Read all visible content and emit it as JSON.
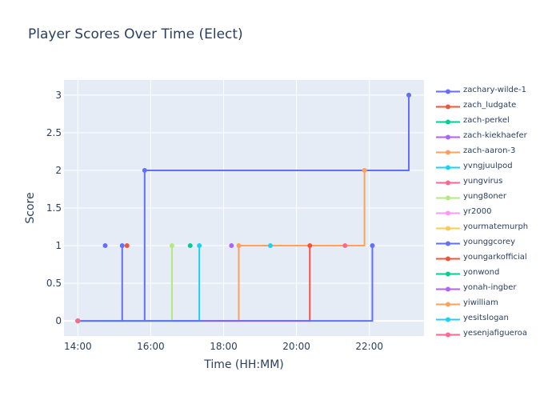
{
  "chart_data": {
    "type": "line",
    "title": "Player Scores Over Time (Elect)",
    "xlabel": "Time (HH:MM)",
    "ylabel": "Score",
    "line_shape": "step-after",
    "x_range_hours": [
      13.62,
      23.5
    ],
    "ylim": [
      -0.2,
      3.2
    ],
    "x_tick_labels": [
      "14:00",
      "16:00",
      "18:00",
      "20:00",
      "22:00"
    ],
    "x_tick_hours": [
      14,
      16,
      18,
      20,
      22
    ],
    "y_ticks": [
      0,
      0.5,
      1,
      1.5,
      2,
      2.5,
      3
    ],
    "y_tick_labels": [
      "0",
      "0.5",
      "1",
      "1.5",
      "2",
      "2.5",
      "3"
    ],
    "grid": true,
    "legend_position": "right",
    "series": [
      {
        "name": "zachary-wilde-1",
        "color": "#636efa",
        "x": [
          "14:00",
          "15:50",
          "23:05"
        ],
        "y": [
          0,
          2,
          3
        ]
      },
      {
        "name": "zach_ludgate",
        "color": "#EF553B",
        "x": [
          "14:00",
          "20:22"
        ],
        "y": [
          0,
          1
        ]
      },
      {
        "name": "zach-perkel",
        "color": "#00cc96",
        "x": [
          "14:00"
        ],
        "y": [
          0
        ]
      },
      {
        "name": "zach-kiekhaefer",
        "color": "#ab63fa",
        "x": [
          "14:00"
        ],
        "y": [
          0
        ]
      },
      {
        "name": "zach-aaron-3",
        "color": "#FFA15A",
        "x": [
          "14:00",
          "18:25",
          "21:52"
        ],
        "y": [
          0,
          1,
          2
        ]
      },
      {
        "name": "yvngjuulpod",
        "color": "#19d3f3",
        "x": [
          "14:00",
          "17:20"
        ],
        "y": [
          0,
          1
        ]
      },
      {
        "name": "yungvirus",
        "color": "#FF6692",
        "x": [
          "14:00"
        ],
        "y": [
          0
        ]
      },
      {
        "name": "yung8oner",
        "color": "#B6E880",
        "x": [
          "14:00",
          "16:35"
        ],
        "y": [
          0,
          1
        ]
      },
      {
        "name": "yr2000",
        "color": "#FF97FF",
        "x": [
          "14:00"
        ],
        "y": [
          0
        ]
      },
      {
        "name": "yourmatemurph",
        "color": "#FECB52",
        "x": [
          "14:00"
        ],
        "y": [
          0
        ]
      },
      {
        "name": "younggcorey",
        "color": "#636efa",
        "x": [
          "14:00",
          "22:05"
        ],
        "y": [
          0,
          1
        ]
      },
      {
        "name": "youngarkofficial",
        "color": "#EF553B",
        "x": [
          "14:00"
        ],
        "y": [
          0
        ]
      },
      {
        "name": "yonwond",
        "color": "#00cc96",
        "x": [
          "14:00"
        ],
        "y": [
          0
        ]
      },
      {
        "name": "yonah-ingber",
        "color": "#ab63fa",
        "x": [
          "14:00"
        ],
        "y": [
          0
        ]
      },
      {
        "name": "yiwilliam",
        "color": "#FFA15A",
        "x": [
          "14:00"
        ],
        "y": [
          0
        ]
      },
      {
        "name": "yesitslogan",
        "color": "#19d3f3",
        "x": [
          "14:00"
        ],
        "y": [
          0
        ]
      },
      {
        "name": "yesenjafigueroa",
        "color": "#FF6692",
        "x": [
          "14:00"
        ],
        "y": [
          0
        ]
      }
    ],
    "isolated_points": [
      {
        "color": "#636efa",
        "x": "14:45",
        "y": 1
      },
      {
        "color": "#636efa",
        "x": "15:13",
        "y": 1
      },
      {
        "color": "#EF553B",
        "x": "15:21",
        "y": 1
      },
      {
        "color": "#00cc96",
        "x": "17:05",
        "y": 1
      },
      {
        "color": "#ab63fa",
        "x": "18:13",
        "y": 1
      },
      {
        "color": "#19d3f3",
        "x": "19:17",
        "y": 1
      },
      {
        "color": "#FF6692",
        "x": "21:20",
        "y": 1
      }
    ],
    "vertical_segments": [
      {
        "color": "#636efa",
        "x": "15:13",
        "y0": 0,
        "y1": 1
      }
    ]
  }
}
